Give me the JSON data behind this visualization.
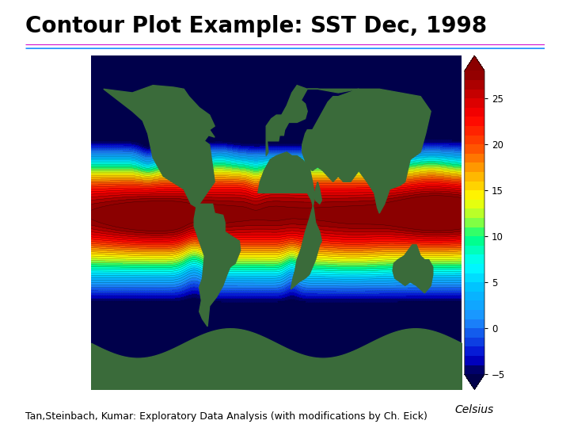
{
  "title": "Contour Plot Example: SST Dec, 1998",
  "title_fontsize": 20,
  "title_fontweight": "bold",
  "colorbar_label": "Celsius",
  "colorbar_ticks": [
    -5,
    0,
    5,
    10,
    15,
    20,
    25
  ],
  "vmin": -5,
  "vmax": 28,
  "footer_text": "Tan,Steinbach, Kumar: Exploratory Data Analysis (with modifications by Ch. Eick)",
  "footer_fontsize": 9,
  "bg_color": "#ffffff",
  "line1_color": "#cc00cc",
  "line2_color": "#3399ff",
  "cmap_colors": [
    [
      0.0,
      "#00004B"
    ],
    [
      0.05,
      "#0000CD"
    ],
    [
      0.18,
      "#1E90FF"
    ],
    [
      0.28,
      "#00BFFF"
    ],
    [
      0.36,
      "#00FFFF"
    ],
    [
      0.45,
      "#00FF80"
    ],
    [
      0.52,
      "#ADFF2F"
    ],
    [
      0.58,
      "#FFFF00"
    ],
    [
      0.67,
      "#FFA500"
    ],
    [
      0.76,
      "#FF4500"
    ],
    [
      0.85,
      "#FF0000"
    ],
    [
      1.0,
      "#8B0000"
    ]
  ],
  "land_color": "#3a6b3a",
  "ocean_bg": "#00004B"
}
